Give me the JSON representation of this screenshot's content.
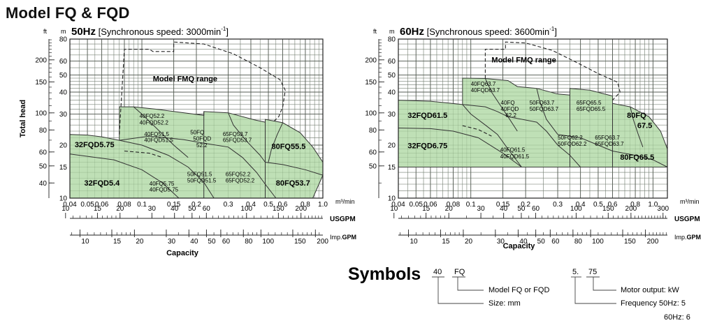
{
  "page_title": "Model FQ & FQD",
  "chart_data": [
    {
      "type": "area",
      "title_freq": "50Hz",
      "title_rest": " [Synchronous  speed:   3000min",
      "title_sup": "-1",
      "title_close": "]",
      "ylabel": "Total  head",
      "xlabel": "Capacity",
      "unit_left": "ft",
      "unit_right": "m",
      "x_unit": "m³/min",
      "usgpm_label": "USGPM",
      "imp_label_a": "Imp.",
      "imp_label_b": "GPM",
      "xlim": [
        0.04,
        1.0
      ],
      "ylim": [
        10,
        80
      ],
      "x_scale": "log",
      "y_scale": "log",
      "x_ticks": [
        0.04,
        0.05,
        0.06,
        0.08,
        0.1,
        0.15,
        0.2,
        0.3,
        0.4,
        0.5,
        0.6,
        0.8,
        1.0
      ],
      "x_tick_labels": [
        "0.04",
        "0.05",
        "0.06",
        "0.08",
        "0.1",
        "0.15",
        "0.2",
        "0.3",
        "0.4",
        "0.5",
        "0.6",
        "0.8",
        "1.0"
      ],
      "m_ticks": [
        10,
        15,
        20,
        30,
        40,
        50,
        60,
        80
      ],
      "m_tick_labels": [
        "10",
        "15",
        "20",
        "30",
        "40",
        "50",
        "60",
        "80"
      ],
      "ft_ticks": [
        40,
        50,
        60,
        80,
        100,
        150,
        200
      ],
      "ft_tick_labels": [
        "40",
        "50",
        "60",
        "80",
        "100",
        "150",
        "200"
      ],
      "usgpm_ticks": [
        10,
        15,
        20,
        30,
        40,
        50,
        60,
        100,
        150,
        200
      ],
      "usgpm_tick_labels": [
        "10",
        "15",
        "20",
        "30",
        "40",
        "50",
        "60",
        "100",
        "150",
        "200"
      ],
      "imp_ticks": [
        10,
        15,
        20,
        30,
        40,
        50,
        60,
        80,
        100,
        150,
        200
      ],
      "imp_tick_labels": [
        "10",
        "15",
        "20",
        "30",
        "40",
        "50",
        "60",
        "80",
        "100",
        "150",
        "200"
      ],
      "outline": [
        [
          0.04,
          23
        ],
        [
          0.05,
          22.8
        ],
        [
          0.06,
          22.3
        ],
        [
          0.075,
          21.3
        ],
        [
          0.075,
          33
        ],
        [
          0.09,
          33
        ],
        [
          0.12,
          32
        ],
        [
          0.16,
          30.8
        ],
        [
          0.22,
          29.5
        ],
        [
          0.22,
          31
        ],
        [
          0.3,
          30.5
        ],
        [
          0.42,
          27.8
        ],
        [
          0.48,
          27
        ],
        [
          0.48,
          28
        ],
        [
          0.6,
          26.8
        ],
        [
          0.75,
          23.5
        ],
        [
          0.88,
          19.5
        ],
        [
          1.0,
          16
        ],
        [
          1.0,
          13.5
        ],
        [
          0.88,
          10
        ],
        [
          0.04,
          10
        ]
      ],
      "boundaries": [
        [
          [
            0.04,
            17.8
          ],
          [
            0.07,
            16.5
          ],
          [
            0.1,
            14.5
          ],
          [
            0.13,
            12.2
          ],
          [
            0.16,
            10
          ]
        ],
        [
          [
            0.075,
            21.3
          ],
          [
            0.1,
            20
          ],
          [
            0.14,
            17.5
          ],
          [
            0.18,
            15
          ],
          [
            0.22,
            12.3
          ],
          [
            0.25,
            10
          ]
        ],
        [
          [
            0.075,
            21.3
          ],
          [
            0.11,
            22.5
          ],
          [
            0.17,
            21.5
          ],
          [
            0.22,
            20.5
          ]
        ],
        [
          [
            0.09,
            33
          ],
          [
            0.1,
            30
          ],
          [
            0.12,
            25
          ],
          [
            0.15,
            20
          ],
          [
            0.18,
            17
          ]
        ],
        [
          [
            0.22,
            31
          ],
          [
            0.22,
            10
          ]
        ],
        [
          [
            0.22,
            20.5
          ],
          [
            0.3,
            19.5
          ],
          [
            0.36,
            17
          ],
          [
            0.43,
            14
          ],
          [
            0.48,
            12
          ],
          [
            0.55,
            10
          ]
        ],
        [
          [
            0.3,
            30.5
          ],
          [
            0.32,
            26
          ],
          [
            0.38,
            21
          ],
          [
            0.45,
            17.5
          ],
          [
            0.48,
            16
          ]
        ],
        [
          [
            0.48,
            28
          ],
          [
            0.48,
            10
          ]
        ],
        [
          [
            0.6,
            26.8
          ],
          [
            0.56,
            23
          ],
          [
            0.52,
            19
          ],
          [
            0.5,
            16
          ]
        ],
        [
          [
            0.48,
            16
          ],
          [
            0.6,
            15.5
          ],
          [
            0.8,
            14.5
          ],
          [
            1.0,
            13.5
          ]
        ]
      ],
      "fmq_range": [
        [
          0.075,
          23
        ],
        [
          0.08,
          70
        ],
        [
          0.11,
          70
        ],
        [
          0.115,
          68
        ],
        [
          0.15,
          68
        ],
        [
          0.15,
          77
        ],
        [
          0.22,
          75
        ],
        [
          0.32,
          66
        ],
        [
          0.45,
          55
        ],
        [
          0.58,
          47
        ],
        [
          0.62,
          41
        ],
        [
          0.6,
          33
        ],
        [
          0.57,
          29
        ],
        [
          0.53,
          27
        ]
      ],
      "fmq_extra": [
        [
          0.08,
          18.5
        ],
        [
          0.11,
          18
        ],
        [
          0.13,
          17
        ]
      ],
      "fmq_label": "Model FMQ range",
      "fmq_label_pos": [
        0.115,
        46
      ],
      "labels": [
        {
          "text": "32FQD5.75",
          "x": 0.0425,
          "y": 19.5,
          "size": 11,
          "bold": true
        },
        {
          "text": "32FQD5.4",
          "x": 0.048,
          "y": 11.8,
          "size": 11,
          "bold": true
        },
        {
          "text": "40FQ52.2",
          "x": 0.097,
          "y": 28.5,
          "size": 8,
          "bold": false
        },
        {
          "text": "40FQD52.2",
          "x": 0.097,
          "y": 26.2,
          "size": 8,
          "bold": false
        },
        {
          "text": "40FQ51.5",
          "x": 0.103,
          "y": 22.5,
          "size": 8,
          "bold": false
        },
        {
          "text": "40FQD51.5",
          "x": 0.103,
          "y": 20.8,
          "size": 8,
          "bold": false
        },
        {
          "text": "40FQ5.75",
          "x": 0.11,
          "y": 11.8,
          "size": 8,
          "bold": false
        },
        {
          "text": "40FQD5.75",
          "x": 0.11,
          "y": 10.9,
          "size": 8,
          "bold": false
        },
        {
          "text": "50FQ",
          "x": 0.185,
          "y": 23,
          "size": 8,
          "bold": false
        },
        {
          "text": "50FQD",
          "x": 0.192,
          "y": 21.2,
          "size": 8,
          "bold": false
        },
        {
          "text": "52.2",
          "x": 0.2,
          "y": 19.5,
          "size": 8,
          "bold": false
        },
        {
          "text": "50FQ51.5",
          "x": 0.178,
          "y": 13.3,
          "size": 8,
          "bold": false
        },
        {
          "text": "50FQD51.5",
          "x": 0.178,
          "y": 12.3,
          "size": 8,
          "bold": false
        },
        {
          "text": "65FQ53.7",
          "x": 0.28,
          "y": 22.5,
          "size": 8,
          "bold": false
        },
        {
          "text": "65FQD53.7",
          "x": 0.28,
          "y": 20.8,
          "size": 8,
          "bold": false
        },
        {
          "text": "65FQ52.2",
          "x": 0.29,
          "y": 13.3,
          "size": 8,
          "bold": false
        },
        {
          "text": "65FQD52.2",
          "x": 0.29,
          "y": 12.3,
          "size": 8,
          "bold": false
        },
        {
          "text": "80FQ55.5",
          "x": 0.52,
          "y": 19,
          "size": 11,
          "bold": true
        },
        {
          "text": "80FQ53.7",
          "x": 0.55,
          "y": 11.8,
          "size": 11,
          "bold": true
        }
      ]
    },
    {
      "type": "area",
      "title_freq": "60Hz",
      "title_rest": " [Synchronous  speed:   3600min",
      "title_sup": "-1",
      "title_close": "]",
      "ylabel": "Total  head",
      "xlabel": "Capacity",
      "unit_left": "ft",
      "unit_right": "m",
      "x_unit": "m³/min",
      "usgpm_label": "USGPM",
      "imp_label_a": "Imp.",
      "imp_label_b": "GPM",
      "xlim": [
        0.04,
        1.2
      ],
      "ylim": [
        10,
        80
      ],
      "x_scale": "log",
      "y_scale": "log",
      "x_ticks": [
        0.04,
        0.05,
        0.06,
        0.08,
        0.1,
        0.15,
        0.2,
        0.3,
        0.4,
        0.5,
        0.6,
        0.8,
        1.0
      ],
      "x_tick_labels": [
        "0.04",
        "0.05",
        "0.06",
        "0.08",
        "0.1",
        "0.15",
        "0.2",
        "0.3",
        "0.4",
        "0.5",
        "0.6",
        "0.8",
        "1.0"
      ],
      "m_ticks": [
        10,
        15,
        20,
        30,
        40,
        50,
        60,
        80
      ],
      "m_tick_labels": [
        "10",
        "15",
        "20",
        "30",
        "40",
        "50",
        "60",
        "80"
      ],
      "ft_ticks": [
        50,
        60,
        80,
        100,
        150,
        200
      ],
      "ft_tick_labels": [
        "50",
        "60",
        "80",
        "100",
        "150",
        "200"
      ],
      "usgpm_ticks": [
        10,
        15,
        20,
        30,
        40,
        50,
        60,
        100,
        150,
        200,
        300
      ],
      "usgpm_tick_labels": [
        "10",
        "15",
        "20",
        "30",
        "40",
        "50",
        "60",
        "100",
        "150",
        "200",
        "300"
      ],
      "imp_ticks": [
        10,
        15,
        20,
        30,
        40,
        50,
        60,
        80,
        100,
        150,
        200
      ],
      "imp_tick_labels": [
        "10",
        "15",
        "20",
        "30",
        "40",
        "50",
        "60",
        "80",
        "100",
        "150",
        "200"
      ],
      "outline": [
        [
          0.04,
          36
        ],
        [
          0.06,
          35.5
        ],
        [
          0.09,
          34
        ],
        [
          0.09,
          48
        ],
        [
          0.12,
          47.8
        ],
        [
          0.16,
          46.5
        ],
        [
          0.18,
          43
        ],
        [
          0.23,
          42
        ],
        [
          0.3,
          39
        ],
        [
          0.35,
          38.5
        ],
        [
          0.35,
          42
        ],
        [
          0.45,
          41
        ],
        [
          0.6,
          38
        ],
        [
          0.6,
          34.5
        ],
        [
          0.75,
          33
        ],
        [
          0.95,
          29
        ],
        [
          1.1,
          24
        ],
        [
          1.2,
          19
        ],
        [
          1.2,
          15
        ],
        [
          0.04,
          15
        ]
      ],
      "boundaries": [
        [
          [
            0.04,
            25
          ],
          [
            0.06,
            24.8
          ],
          [
            0.08,
            24
          ],
          [
            0.11,
            22
          ],
          [
            0.15,
            18
          ],
          [
            0.19,
            15
          ]
        ],
        [
          [
            0.09,
            34
          ],
          [
            0.1,
            30
          ],
          [
            0.12,
            26
          ],
          [
            0.14,
            23
          ],
          [
            0.16,
            19
          ],
          [
            0.19,
            15
          ]
        ],
        [
          [
            0.09,
            34
          ],
          [
            0.12,
            33
          ],
          [
            0.14,
            31
          ],
          [
            0.16,
            29
          ]
        ],
        [
          [
            0.12,
            47.8
          ],
          [
            0.13,
            40
          ],
          [
            0.15,
            32
          ],
          [
            0.16,
            29
          ],
          [
            0.18,
            24
          ]
        ],
        [
          [
            0.16,
            29
          ],
          [
            0.23,
            27
          ],
          [
            0.26,
            24
          ],
          [
            0.3,
            20
          ],
          [
            0.35,
            17.5
          ],
          [
            0.4,
            15
          ]
        ],
        [
          [
            0.23,
            42
          ],
          [
            0.24,
            35
          ],
          [
            0.26,
            28
          ],
          [
            0.3,
            23
          ]
        ],
        [
          [
            0.35,
            42
          ],
          [
            0.35,
            15
          ]
        ],
        [
          [
            0.3,
            23
          ],
          [
            0.4,
            22
          ],
          [
            0.5,
            20
          ],
          [
            0.6,
            18.5
          ]
        ],
        [
          [
            0.6,
            34.5
          ],
          [
            0.6,
            15
          ]
        ],
        [
          [
            0.6,
            18.5
          ],
          [
            0.8,
            17.5
          ],
          [
            1.0,
            16.5
          ],
          [
            1.2,
            15
          ]
        ],
        [
          [
            0.75,
            33
          ],
          [
            0.78,
            28
          ],
          [
            0.83,
            23
          ],
          [
            0.88,
            19.5
          ]
        ]
      ],
      "fmq_range": [
        [
          0.12,
          47.8
        ],
        [
          0.12,
          70
        ],
        [
          0.155,
          70
        ],
        [
          0.155,
          77
        ],
        [
          0.2,
          76
        ],
        [
          0.28,
          69
        ],
        [
          0.38,
          59
        ],
        [
          0.5,
          51
        ],
        [
          0.64,
          45.5
        ],
        [
          0.66,
          40
        ],
        [
          0.6,
          36
        ]
      ],
      "fmq_extra": [
        [
          0.09,
          25.8
        ],
        [
          0.11,
          24.5
        ],
        [
          0.13,
          22.5
        ]
      ],
      "fmq_label": "Model FMQ range",
      "fmq_label_pos": [
        0.13,
        59
      ],
      "labels": [
        {
          "text": "32FQD61.5",
          "x": 0.045,
          "y": 28.5,
          "size": 11,
          "bold": true
        },
        {
          "text": "32FQD6.75",
          "x": 0.045,
          "y": 19.2,
          "size": 11,
          "bold": true
        },
        {
          "text": "40FQ63.7",
          "x": 0.1,
          "y": 43.5,
          "size": 8,
          "bold": false
        },
        {
          "text": "40FQD63.7",
          "x": 0.1,
          "y": 40,
          "size": 8,
          "bold": false
        },
        {
          "text": "40FQ",
          "x": 0.146,
          "y": 34,
          "size": 8,
          "bold": false
        },
        {
          "text": "40FQD",
          "x": 0.146,
          "y": 31.3,
          "size": 8,
          "bold": false
        },
        {
          "text": "62.2",
          "x": 0.155,
          "y": 28.8,
          "size": 8,
          "bold": false
        },
        {
          "text": "40FQ61.5",
          "x": 0.145,
          "y": 18.3,
          "size": 8,
          "bold": false
        },
        {
          "text": "40FQD61.5",
          "x": 0.145,
          "y": 16.8,
          "size": 8,
          "bold": false
        },
        {
          "text": "50FQ63.7",
          "x": 0.21,
          "y": 34,
          "size": 8,
          "bold": false
        },
        {
          "text": "50FQD63.7",
          "x": 0.21,
          "y": 31.3,
          "size": 8,
          "bold": false
        },
        {
          "text": "50FQ62.2",
          "x": 0.3,
          "y": 21.5,
          "size": 8,
          "bold": false
        },
        {
          "text": "50FQD62.2",
          "x": 0.3,
          "y": 19.8,
          "size": 8,
          "bold": false
        },
        {
          "text": "65FQ65.5",
          "x": 0.38,
          "y": 34,
          "size": 8,
          "bold": false
        },
        {
          "text": "65FQD65.5",
          "x": 0.38,
          "y": 31.3,
          "size": 8,
          "bold": false
        },
        {
          "text": "65FQ63.7",
          "x": 0.48,
          "y": 21.5,
          "size": 8,
          "bold": false
        },
        {
          "text": "65FQD63.7",
          "x": 0.48,
          "y": 19.8,
          "size": 8,
          "bold": false
        },
        {
          "text": "80FQ",
          "x": 0.72,
          "y": 28.5,
          "size": 11,
          "bold": true
        },
        {
          "text": "67.5",
          "x": 0.82,
          "y": 25,
          "size": 11,
          "bold": true
        },
        {
          "text": "80FQ65.5",
          "x": 0.66,
          "y": 16.5,
          "size": 11,
          "bold": true
        }
      ]
    }
  ],
  "symbols": {
    "title": "Symbols",
    "size_code": "40",
    "model_code": "FQ",
    "model_desc": "Model FQ or FQD",
    "size_desc": "Size: mm",
    "freq_code": "5.",
    "motor_code": "75",
    "motor_desc": "Motor output: kW",
    "freq_desc": "Frequency 50Hz: 5",
    "freq_desc2": "60Hz: 6"
  }
}
